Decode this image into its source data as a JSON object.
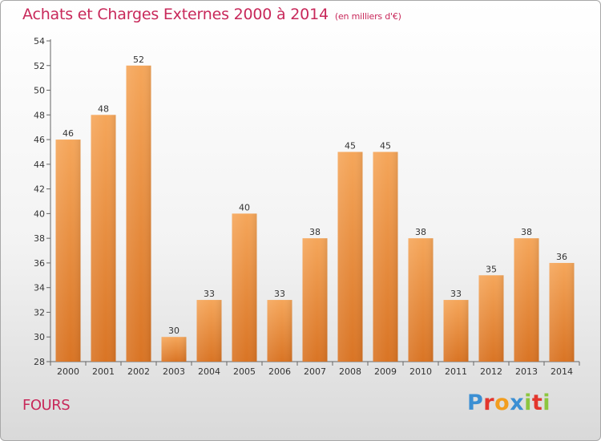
{
  "header": {
    "title": "Achats et Charges Externes 2000 à 2014",
    "unit": "(en milliers d'€)"
  },
  "footer": {
    "city": "FOURS",
    "logo": [
      "P",
      "r",
      "o",
      "x",
      "i",
      "t",
      "i"
    ],
    "logo_colors": [
      "#3b8fd3",
      "#e3362d",
      "#f29d1e",
      "#3b8fd3",
      "#8cc63f",
      "#e3362d",
      "#8cc63f"
    ]
  },
  "chart_data": {
    "type": "bar",
    "title": "Achats et Charges Externes 2000 à 2014",
    "subtitle": "(en milliers d'€)",
    "xlabel": "",
    "ylabel": "",
    "categories": [
      "2000",
      "2001",
      "2002",
      "2003",
      "2004",
      "2005",
      "2006",
      "2007",
      "2008",
      "2009",
      "2010",
      "2011",
      "2012",
      "2013",
      "2014"
    ],
    "values": [
      46,
      48,
      52,
      30,
      33,
      40,
      33,
      38,
      45,
      45,
      38,
      33,
      35,
      38,
      36
    ],
    "ylim": [
      28,
      54
    ],
    "yticks": [
      28,
      30,
      32,
      34,
      36,
      38,
      40,
      42,
      44,
      46,
      48,
      50,
      52,
      54
    ],
    "grid": false,
    "bar_color_top": "#f5a65a",
    "bar_color_bottom": "#d97424"
  }
}
